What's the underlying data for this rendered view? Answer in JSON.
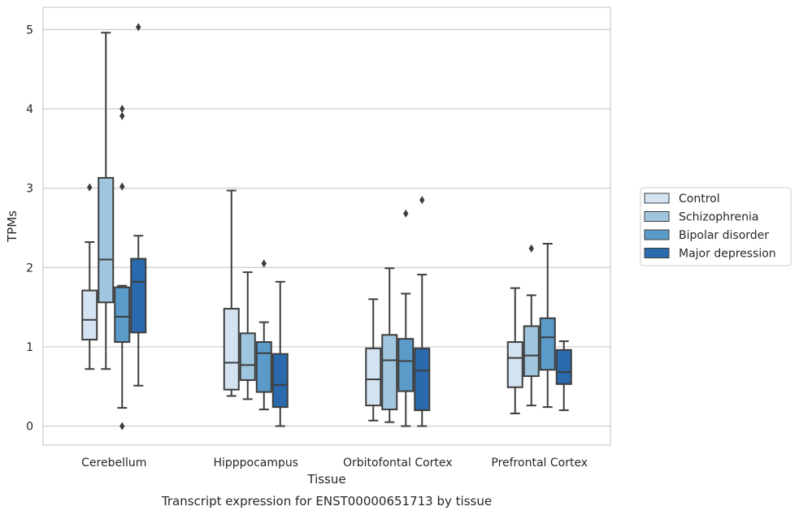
{
  "caption": "Transcript expression for ENST00000651713 by tissue",
  "chart_data": {
    "type": "box",
    "xlabel": "Tissue",
    "ylabel": "TPMs",
    "ylim": [
      -0.24,
      5.28
    ],
    "yticks": [
      0,
      1,
      2,
      3,
      4,
      5
    ],
    "grid": "horizontal",
    "legend_position": "right",
    "categories": [
      "Cerebellum",
      "Hipppocampus",
      "Orbitofontal Cortex",
      "Prefrontal Cortex"
    ],
    "series": [
      {
        "name": "Control",
        "color": "#d4e3f2",
        "boxes": [
          {
            "whisker_low": 0.72,
            "q1": 1.09,
            "median": 1.34,
            "q3": 1.71,
            "whisker_high": 2.32,
            "outliers": [
              3.01
            ]
          },
          {
            "whisker_low": 0.38,
            "q1": 0.46,
            "median": 0.8,
            "q3": 1.48,
            "whisker_high": 2.97,
            "outliers": []
          },
          {
            "whisker_low": 0.07,
            "q1": 0.26,
            "median": 0.59,
            "q3": 0.98,
            "whisker_high": 1.6,
            "outliers": []
          },
          {
            "whisker_low": 0.16,
            "q1": 0.49,
            "median": 0.86,
            "q3": 1.06,
            "whisker_high": 1.74,
            "outliers": []
          }
        ]
      },
      {
        "name": "Schizophrenia",
        "color": "#9fc6de",
        "boxes": [
          {
            "whisker_low": 0.72,
            "q1": 1.56,
            "median": 2.1,
            "q3": 3.13,
            "whisker_high": 4.96,
            "outliers": []
          },
          {
            "whisker_low": 0.34,
            "q1": 0.58,
            "median": 0.77,
            "q3": 1.17,
            "whisker_high": 1.94,
            "outliers": []
          },
          {
            "whisker_low": 0.05,
            "q1": 0.21,
            "median": 0.83,
            "q3": 1.15,
            "whisker_high": 1.99,
            "outliers": []
          },
          {
            "whisker_low": 0.26,
            "q1": 0.63,
            "median": 0.89,
            "q3": 1.26,
            "whisker_high": 1.65,
            "outliers": [
              2.24
            ]
          }
        ]
      },
      {
        "name": "Bipolar disorder",
        "color": "#5a9bc9",
        "boxes": [
          {
            "whisker_low": 0.23,
            "q1": 1.06,
            "median": 1.38,
            "q3": 1.75,
            "whisker_high": 1.77,
            "outliers": [
              3.02,
              3.91,
              4.0,
              0.0
            ]
          },
          {
            "whisker_low": 0.21,
            "q1": 0.43,
            "median": 0.92,
            "q3": 1.06,
            "whisker_high": 1.31,
            "outliers": [
              2.05
            ]
          },
          {
            "whisker_low": 0.0,
            "q1": 0.44,
            "median": 0.82,
            "q3": 1.1,
            "whisker_high": 1.67,
            "outliers": [
              2.68
            ]
          },
          {
            "whisker_low": 0.24,
            "q1": 0.71,
            "median": 1.12,
            "q3": 1.36,
            "whisker_high": 2.3,
            "outliers": []
          }
        ]
      },
      {
        "name": "Major depression",
        "color": "#2a6aad",
        "boxes": [
          {
            "whisker_low": 0.51,
            "q1": 1.18,
            "median": 1.82,
            "q3": 2.11,
            "whisker_high": 2.4,
            "outliers": [
              5.03
            ]
          },
          {
            "whisker_low": 0.0,
            "q1": 0.24,
            "median": 0.52,
            "q3": 0.91,
            "whisker_high": 1.82,
            "outliers": []
          },
          {
            "whisker_low": 0.0,
            "q1": 0.2,
            "median": 0.7,
            "q3": 0.98,
            "whisker_high": 1.91,
            "outliers": [
              2.85
            ]
          },
          {
            "whisker_low": 0.2,
            "q1": 0.53,
            "median": 0.68,
            "q3": 0.96,
            "whisker_high": 1.07,
            "outliers": []
          }
        ]
      }
    ]
  }
}
